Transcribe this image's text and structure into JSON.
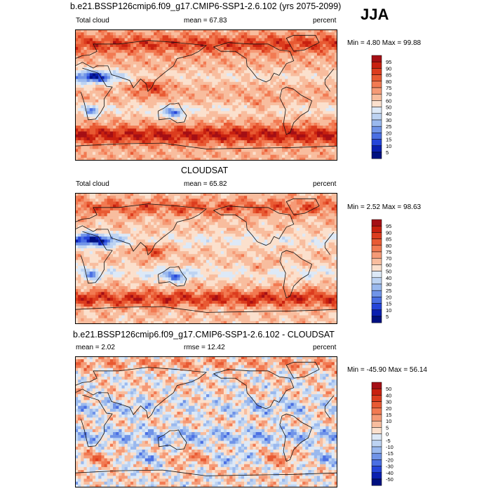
{
  "season": "JJA",
  "panels": [
    {
      "title": "b.e21.BSSP126cmip6.f09_g17.CMIP6-SSP1-2.6.102 (yrs 2075-2099)",
      "left_label": "Total cloud",
      "mean_text": "mean =  67.83",
      "units": "percent",
      "minmax_text": "Min =   4.80 Max =  99.88"
    },
    {
      "title": "CLOUDSAT",
      "left_label": "Total cloud",
      "mean_text": "mean =  65.82",
      "units": "percent",
      "minmax_text": "Min =   2.52 Max =  98.63"
    },
    {
      "title": "b.e21.BSSP126cmip6.f09_g17.CMIP6-SSP1-2.6.102 - CLOUDSAT",
      "left_label": "mean =   2.02",
      "mean_text": "rmse =  12.42",
      "units": "percent",
      "minmax_text": "Min = -45.90 Max =  56.14"
    }
  ],
  "chart_data": [
    {
      "type": "heatmap",
      "title": "b.e21.BSSP126cmip6.f09_g17.CMIP6-SSP1-2.6.102 (yrs 2075-2099)",
      "variable": "Total cloud",
      "units": "percent",
      "mean": 67.83,
      "min": 4.8,
      "max": 99.88,
      "colorbar_levels": [
        "95",
        "90",
        "85",
        "80",
        "75",
        "70",
        "60",
        "50",
        "40",
        "30",
        "25",
        "20",
        "15",
        "10",
        "5"
      ],
      "colorbar_colors": [
        "#a50f15",
        "#c8200f",
        "#dc3c1e",
        "#e85a33",
        "#f27a52",
        "#f59a76",
        "#f8bd9e",
        "#fbe0cd",
        "#dde9f7",
        "#bdd3f2",
        "#9ab9ee",
        "#7094e8",
        "#4a6fe3",
        "#2545d9",
        "#0a1fb0",
        "#001080"
      ]
    },
    {
      "type": "heatmap",
      "title": "CLOUDSAT",
      "variable": "Total cloud",
      "units": "percent",
      "mean": 65.82,
      "min": 2.52,
      "max": 98.63,
      "colorbar_levels": [
        "95",
        "90",
        "85",
        "80",
        "75",
        "70",
        "60",
        "50",
        "40",
        "30",
        "25",
        "20",
        "15",
        "10",
        "5"
      ],
      "colorbar_colors": [
        "#a50f15",
        "#c8200f",
        "#dc3c1e",
        "#e85a33",
        "#f27a52",
        "#f59a76",
        "#f8bd9e",
        "#fbe0cd",
        "#dde9f7",
        "#bdd3f2",
        "#9ab9ee",
        "#7094e8",
        "#4a6fe3",
        "#2545d9",
        "#0a1fb0",
        "#001080"
      ]
    },
    {
      "type": "heatmap",
      "title": "b.e21.BSSP126cmip6.f09_g17.CMIP6-SSP1-2.6.102 - CLOUDSAT",
      "variable": "difference",
      "units": "percent",
      "mean": 2.02,
      "rmse": 12.42,
      "min": -45.9,
      "max": 56.14,
      "colorbar_levels": [
        "50",
        "40",
        "30",
        "20",
        "15",
        "10",
        "5",
        "0",
        "-5",
        "-10",
        "-15",
        "-20",
        "-30",
        "-40",
        "-50"
      ],
      "colorbar_colors": [
        "#a50f15",
        "#c8200f",
        "#dc3c1e",
        "#e85a33",
        "#f27a52",
        "#f59a76",
        "#f8bd9e",
        "#fbe0cd",
        "#dde9f7",
        "#bdd3f2",
        "#9ab9ee",
        "#7094e8",
        "#4a6fe3",
        "#2545d9",
        "#0a1fb0",
        "#001080"
      ]
    }
  ]
}
